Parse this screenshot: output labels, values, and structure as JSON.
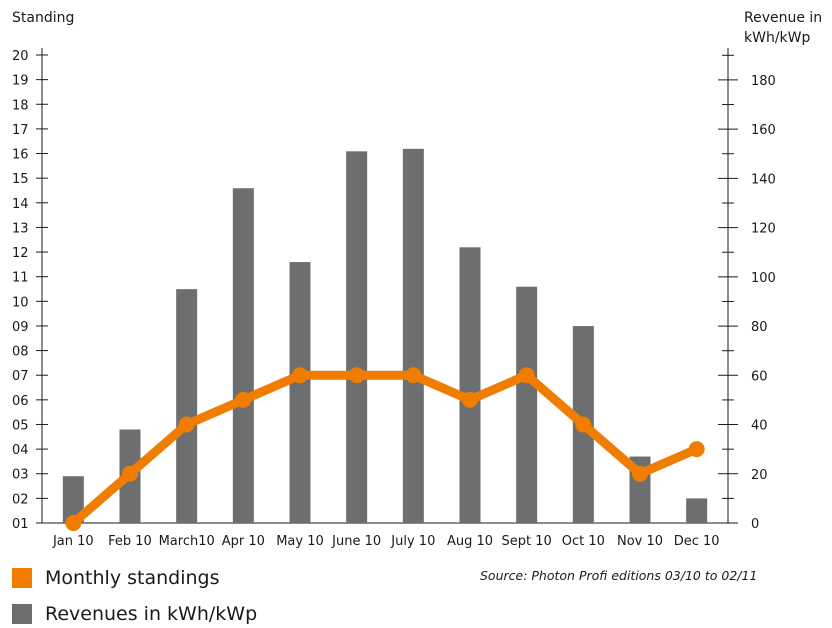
{
  "chart_data": {
    "type": "bar+line",
    "left_axis_title": "Standing",
    "right_axis_title_line1": "Revenue in",
    "right_axis_title_line2": "kWh/kWp",
    "categories": [
      "Jan 10",
      "Feb 10",
      "March10",
      "Apr 10",
      "May 10",
      "June 10",
      "July 10",
      "Aug 10",
      "Sept 10",
      "Oct 10",
      "Nov 10",
      "Dec 10"
    ],
    "left_ticks": [
      "01",
      "02",
      "03",
      "04",
      "05",
      "06",
      "07",
      "08",
      "09",
      "10",
      "11",
      "12",
      "13",
      "14",
      "15",
      "16",
      "17",
      "18",
      "19",
      "20"
    ],
    "right_ticks": [
      "0",
      "20",
      "40",
      "60",
      "80",
      "100",
      "120",
      "140",
      "160",
      "180"
    ],
    "left_range": [
      1,
      20
    ],
    "right_range": [
      0,
      195
    ],
    "series": [
      {
        "name": "Revenues in kWh/kWp",
        "type": "bar",
        "axis": "right",
        "color": "#6d6e70",
        "values": [
          19,
          38,
          95,
          136,
          106,
          151,
          152,
          112,
          96,
          80,
          27,
          10
        ]
      },
      {
        "name": "Monthly standings",
        "type": "line",
        "axis": "left",
        "color": "#f07d00",
        "values": [
          1,
          3,
          5,
          6,
          7,
          7,
          7,
          6,
          7,
          5,
          3,
          4
        ]
      }
    ],
    "legend": [
      {
        "label": "Monthly standings",
        "color": "#f07d00"
      },
      {
        "label": "Revenues in kWh/kWp",
        "color": "#6d6e70"
      }
    ],
    "source": "Source: Photon Profi editions 03/10 to 02/11"
  }
}
